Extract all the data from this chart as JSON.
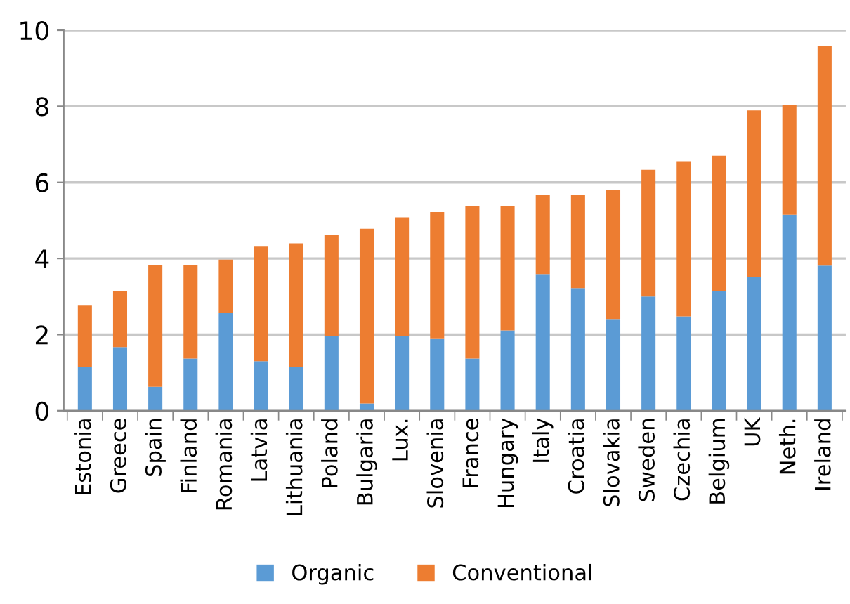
{
  "chart_data": {
    "type": "bar",
    "stacked": true,
    "categories": [
      "Estonia",
      "Greece",
      "Spain",
      "Finland",
      "Romania",
      "Latvia",
      "Lithuania",
      "Poland",
      "Bulgaria",
      "Lux.",
      "Slovenia",
      "France",
      "Hungary",
      "Italy",
      "Croatia",
      "Slovakia",
      "Sweden",
      "Czechia",
      "Belgium",
      "UK",
      "Neth.",
      "Ireland"
    ],
    "series": [
      {
        "name": "Organic",
        "color": "#5b9bd5",
        "values": [
          1.15,
          1.67,
          0.63,
          1.37,
          2.57,
          1.3,
          1.15,
          1.97,
          0.19,
          1.97,
          1.9,
          1.37,
          2.11,
          3.59,
          3.22,
          2.41,
          3.0,
          2.48,
          3.15,
          3.52,
          5.15,
          3.81
        ]
      },
      {
        "name": "Conventional",
        "color": "#ed7d31",
        "values": [
          1.63,
          1.48,
          3.19,
          2.45,
          1.4,
          3.03,
          3.25,
          2.66,
          4.59,
          3.11,
          3.32,
          4.0,
          3.26,
          2.08,
          2.45,
          3.4,
          3.33,
          4.08,
          3.55,
          4.37,
          2.89,
          5.78
        ]
      }
    ],
    "ylim": [
      0,
      10
    ],
    "yticks": [
      0,
      2,
      4,
      6,
      8,
      10
    ],
    "grid": "y",
    "legend": "bottom"
  }
}
